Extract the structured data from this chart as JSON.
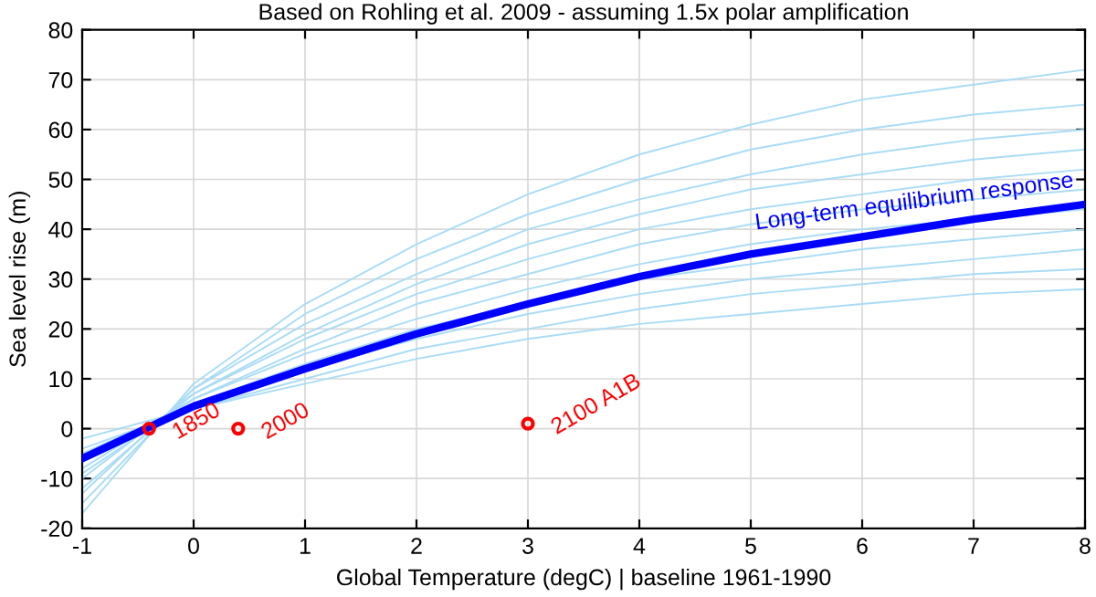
{
  "chart_data": {
    "type": "line",
    "title": "Based on Rohling et al. 2009 - assuming 1.5x polar amplification",
    "xlabel": "Global Temperature (degC) | baseline 1961-1990",
    "ylabel": "Sea level rise (m)",
    "x": [
      -1,
      0,
      1,
      2,
      3,
      4,
      5,
      6,
      7,
      8
    ],
    "series": [
      {
        "color": "#aadcf5",
        "values": [
          -17,
          9,
          25,
          37,
          47,
          55,
          61,
          66,
          69,
          72
        ]
      },
      {
        "color": "#aadcf5",
        "values": [
          -15,
          8,
          23,
          34,
          43,
          50,
          56,
          60,
          63,
          65
        ]
      },
      {
        "color": "#aadcf5",
        "values": [
          -13,
          8,
          21,
          31,
          40,
          46,
          51,
          55,
          58,
          60
        ]
      },
      {
        "color": "#aadcf5",
        "values": [
          -12,
          7,
          19,
          29,
          37,
          43,
          48,
          51,
          54,
          56
        ]
      },
      {
        "color": "#aadcf5",
        "values": [
          -10,
          7,
          18,
          27,
          34,
          40,
          44,
          47,
          50,
          52
        ]
      },
      {
        "color": "#aadcf5",
        "values": [
          -9,
          6,
          16,
          25,
          31,
          37,
          41,
          44,
          46,
          48
        ]
      },
      {
        "color": "#aadcf5",
        "values": [
          -8,
          6,
          15,
          22,
          28,
          33,
          37,
          40,
          42,
          44
        ]
      },
      {
        "color": "#aadcf5",
        "values": [
          -6,
          5,
          13,
          20,
          25,
          30,
          33,
          36,
          38,
          40
        ]
      },
      {
        "color": "#aadcf5",
        "values": [
          -5,
          5,
          12,
          18,
          23,
          27,
          30,
          32,
          34,
          36
        ]
      },
      {
        "color": "#aadcf5",
        "values": [
          -4,
          4,
          10,
          16,
          20,
          24,
          27,
          29,
          31,
          32
        ]
      },
      {
        "color": "#aadcf5",
        "values": [
          -2,
          4,
          9,
          14,
          18,
          21,
          23,
          25,
          27,
          28
        ]
      },
      {
        "name": "Long-term equilibrium response",
        "color": "#0000ff",
        "values": [
          -6,
          4.5,
          12,
          19,
          25,
          30.5,
          35,
          38.5,
          42,
          45
        ]
      },
      {
        "type": "scatter",
        "marker": "circle",
        "color": "#ff0000",
        "x": [
          -0.4,
          0.4,
          3
        ],
        "values": [
          0,
          0,
          1
        ]
      }
    ],
    "annotations": [
      {
        "text": "1850",
        "x": -0.4,
        "y": 0
      },
      {
        "text": "2000",
        "x": 0.4,
        "y": 0
      },
      {
        "text": "2100 A1B",
        "x": 3,
        "y": 1
      }
    ],
    "xlim": [
      -1,
      8
    ],
    "ylim": [
      -20,
      80
    ],
    "xticks": [
      -1,
      0,
      1,
      2,
      3,
      4,
      5,
      6,
      7,
      8
    ],
    "yticks": [
      -20,
      -10,
      0,
      10,
      20,
      30,
      40,
      50,
      60,
      70,
      80
    ],
    "grid": true,
    "legend": false,
    "line_style": "solid"
  }
}
